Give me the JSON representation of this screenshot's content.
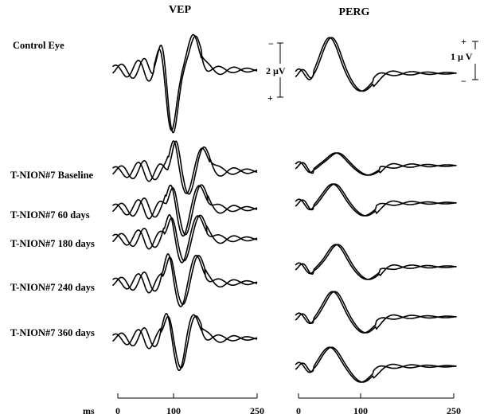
{
  "chart_data": {
    "type": "line",
    "columns": [
      {
        "id": "vep",
        "title": "VEP",
        "ticks": [
          "0",
          "100",
          "250"
        ],
        "tick_ms": [
          0,
          100,
          250
        ],
        "xlabel": "ms"
      },
      {
        "id": "perg",
        "title": "PERG",
        "ticks": [
          "0",
          "100",
          "250"
        ],
        "tick_ms": [
          0,
          100,
          250
        ]
      }
    ],
    "scale_bars": {
      "vep": {
        "label": "2 µV",
        "top_sign": "−",
        "bottom_sign": "+"
      },
      "perg": {
        "label": "1 µ V",
        "top_sign": "+",
        "bottom_sign": "−"
      }
    },
    "rows": [
      {
        "label": "Control Eye",
        "vep": {
          "n1": [
            80,
            3
          ],
          "p1": [
            100,
            -7
          ],
          "n2": [
            140,
            4
          ]
        },
        "perg": {
          "p50": [
            50,
            5
          ],
          "n95": [
            100,
            -2.5
          ]
        }
      },
      {
        "label": "T-NION#7 Baseline",
        "vep": {
          "n1": [
            105,
            4
          ],
          "p1": [
            128,
            -3
          ],
          "n2": [
            155,
            3
          ]
        },
        "perg": {
          "p50": [
            60,
            2
          ],
          "n95": [
            110,
            -1.5
          ]
        }
      },
      {
        "label": "T-NION#7 60 days",
        "vep": {
          "n1": [
            100,
            3
          ],
          "p1": [
            122,
            -3.5
          ],
          "n2": [
            150,
            3
          ]
        },
        "perg": {
          "p50": [
            55,
            3
          ],
          "n95": [
            105,
            -2
          ]
        }
      },
      {
        "label": "T-NION#7 180 days",
        "vep": {
          "n1": [
            98,
            3
          ],
          "p1": [
            120,
            -3
          ],
          "n2": [
            148,
            3
          ]
        },
        "perg": {
          "p50": [
            60,
            3.5
          ],
          "n95": [
            110,
            -2
          ]
        }
      },
      {
        "label": "T-NION#7 240 days",
        "vep": {
          "n1": [
            95,
            3.5
          ],
          "p1": [
            118,
            -3
          ],
          "n2": [
            145,
            3.5
          ]
        },
        "perg": {
          "p50": [
            55,
            4
          ],
          "n95": [
            105,
            -2.5
          ]
        }
      },
      {
        "label": "T-NION#7 360 days",
        "vep": {
          "n1": [
            92,
            3
          ],
          "p1": [
            115,
            -4
          ],
          "n2": [
            140,
            3
          ]
        },
        "perg": {
          "p50": [
            50,
            3
          ],
          "n95": [
            100,
            -2.5
          ]
        }
      }
    ]
  }
}
